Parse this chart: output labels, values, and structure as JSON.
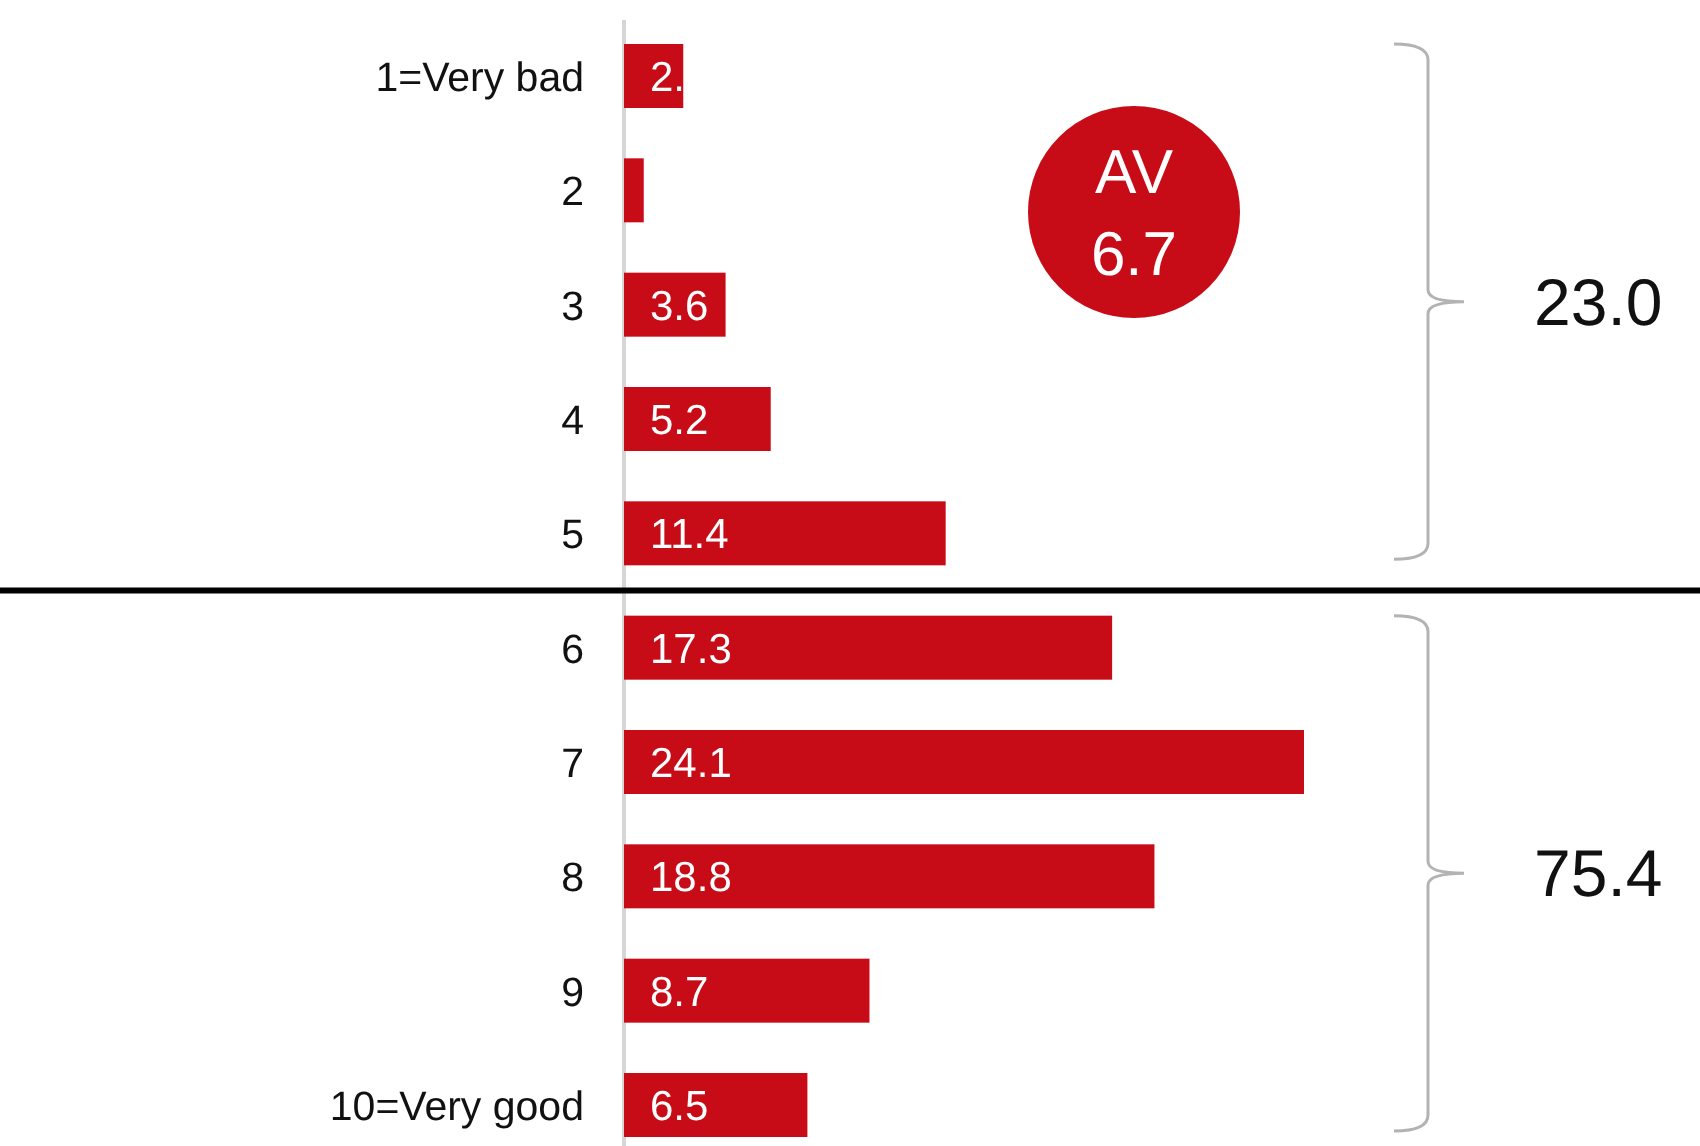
{
  "chart_data": {
    "type": "bar",
    "orientation": "horizontal",
    "categories": [
      "1=Very bad",
      "2",
      "3",
      "4",
      "5",
      "6",
      "7",
      "8",
      "9",
      "10=Very good"
    ],
    "values": [
      2.1,
      0.7,
      3.6,
      5.2,
      11.4,
      17.3,
      24.1,
      18.8,
      8.7,
      6.5
    ],
    "color": "#c70c18",
    "value_labels": [
      "2.",
      null,
      "3.6",
      "5.2",
      "11.4",
      "17.3",
      "24.1",
      "18.8",
      "8.7",
      "6.5"
    ],
    "annotations": [
      "AV 6.7",
      "23.0",
      "75.4"
    ]
  }
}
